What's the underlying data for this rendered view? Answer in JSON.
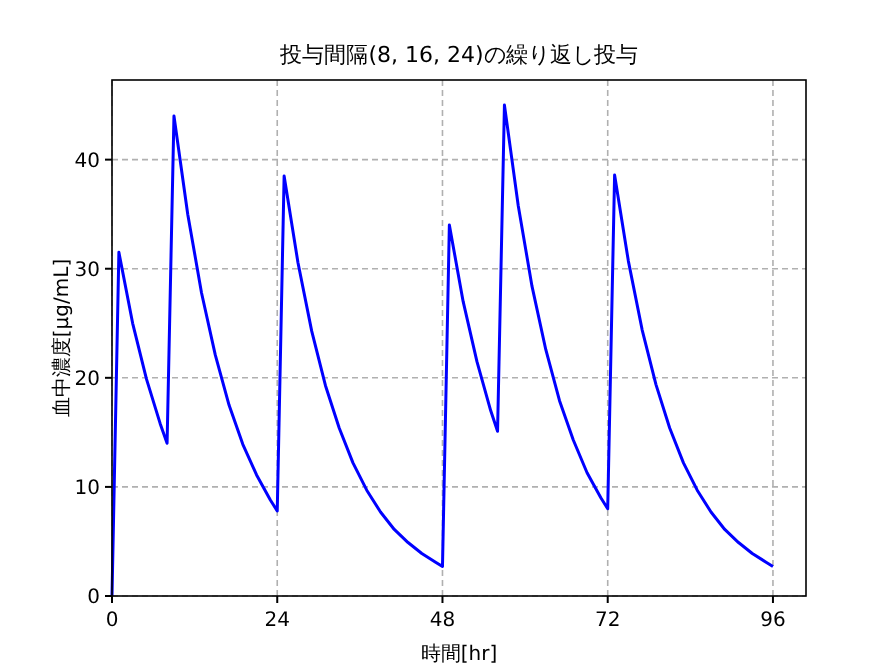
{
  "chart_data": {
    "type": "line",
    "title": "投与間隔(8, 16, 24)の繰り返し投与",
    "xlabel": "時間[hr]",
    "ylabel": "血中濃度[μg/mL]",
    "x": [
      0,
      1,
      3,
      5,
      7,
      8,
      9,
      11,
      13,
      15,
      17,
      19,
      21,
      23,
      24,
      25,
      27,
      29,
      31,
      33,
      35,
      37,
      39,
      41,
      43,
      45,
      47,
      48,
      49,
      51,
      53,
      55,
      56,
      57,
      59,
      61,
      63,
      65,
      67,
      69,
      71,
      72,
      73,
      75,
      77,
      79,
      81,
      83,
      85,
      87,
      89,
      91,
      93,
      95,
      96
    ],
    "series": [
      {
        "color": "#0000ff",
        "values": [
          0,
          31.5,
          25.0,
          19.9,
          15.8,
          14.0,
          44.0,
          35.0,
          27.8,
          22.1,
          17.5,
          13.9,
          11.1,
          8.8,
          7.8,
          38.5,
          30.6,
          24.3,
          19.3,
          15.4,
          12.2,
          9.7,
          7.7,
          6.1,
          4.9,
          3.9,
          3.1,
          2.7,
          34.0,
          27.0,
          21.5,
          17.0,
          15.1,
          45.0,
          35.8,
          28.4,
          22.6,
          17.9,
          14.3,
          11.3,
          9.0,
          8.0,
          38.6,
          30.7,
          24.4,
          19.4,
          15.4,
          12.2,
          9.7,
          7.7,
          6.1,
          4.9,
          3.9,
          3.1,
          2.7
        ]
      }
    ],
    "xlim": [
      0,
      100.8
    ],
    "ylim": [
      0,
      47.3
    ],
    "xticks": [
      0,
      24,
      48,
      72,
      96
    ],
    "yticks": [
      0,
      10,
      20,
      30,
      40
    ],
    "grid": true,
    "line_style": "solid",
    "marker": "none"
  }
}
